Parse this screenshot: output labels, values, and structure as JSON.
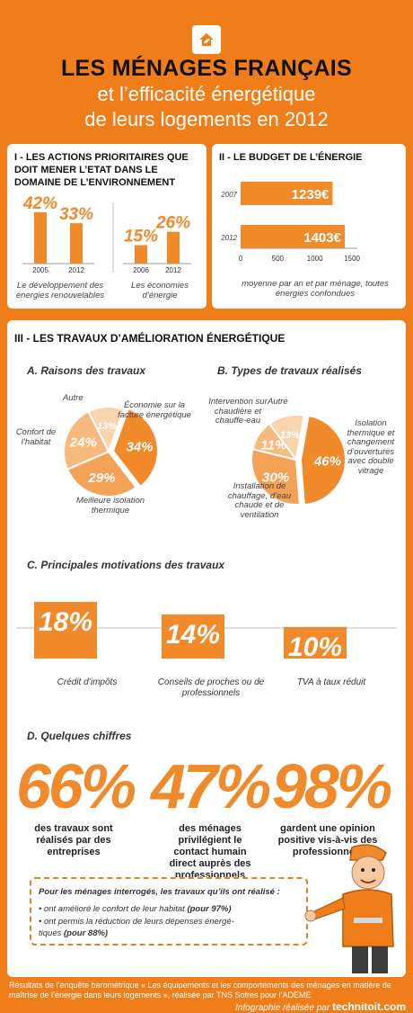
{
  "header": {
    "title_line1": "LES MÉNAGES FRANÇAIS",
    "title_line2": "et l’efficacité énergétique",
    "title_line3": "de leurs logements en 2012",
    "logo_icon": "house-leaf-icon"
  },
  "section1": {
    "title": "I - LES ACTIONS PRIORITAIRES QUE DOIT MENER L’ETAT DANS LE DOMAINE DE L’ENVIRONNEMENT",
    "chart_a_caption": "Le développement des énergies renouvelables",
    "chart_b_caption": "Les économies d’énergie"
  },
  "section2": {
    "title": "II - LE BUDGET DE L’ÉNERGIE",
    "caption": "moyenne par an et par ménage, toutes énergies confondues"
  },
  "section3": {
    "title": "III - LES TRAVAUX D’AMÉLIORATION ÉNERGÉTIQUE",
    "a_title": "A. Raisons des travaux",
    "b_title": "B. Types de travaux réalisés",
    "c_title": "C. Principales motivations des travaux",
    "d_title": "D. Quelques chiffres"
  },
  "chart_data": [
    {
      "type": "bar",
      "categories": [
        "2005",
        "2012"
      ],
      "values": [
        42,
        33
      ],
      "value_labels": [
        "42%",
        "33%"
      ],
      "ylim": [
        0,
        50
      ]
    },
    {
      "type": "bar",
      "categories": [
        "2006",
        "2012"
      ],
      "values": [
        15,
        26
      ],
      "value_labels": [
        "15%",
        "26%"
      ],
      "ylim": [
        0,
        50
      ]
    },
    {
      "type": "bar",
      "orientation": "horizontal",
      "categories": [
        "2007",
        "2012"
      ],
      "values": [
        1239,
        1403
      ],
      "value_labels": [
        "1239€",
        "1403€"
      ],
      "x_ticks": [
        "0",
        "500",
        "1000",
        "1500"
      ],
      "xlim": [
        0,
        1500
      ]
    },
    {
      "type": "pie",
      "labels": [
        "Économie sur la facture énergétique",
        "Meilleure isolation thermique",
        "Confort de l’habitat",
        "Autre"
      ],
      "values": [
        34,
        29,
        24,
        13
      ],
      "value_labels": [
        "34%",
        "29%",
        "24%",
        "13%"
      ]
    },
    {
      "type": "pie",
      "labels": [
        "Isolation thermique et changement d’ouvertures avec double vitrage",
        "Installation de chauffage, d’eau chaude et de ventilation",
        "Intervention sur chaudière et chauffe-eau",
        "Autre"
      ],
      "values": [
        46,
        30,
        11,
        13
      ],
      "value_labels": [
        "46%",
        "30%",
        "11%",
        "13%"
      ]
    },
    {
      "type": "bar",
      "categories": [
        "Crédit d’impôts",
        "Conseils de proches ou de professionnels",
        "TVA à taux réduit"
      ],
      "values": [
        18,
        14,
        10
      ],
      "value_labels": [
        "18%",
        "14%",
        "10%"
      ],
      "ylim": [
        0,
        20
      ]
    }
  ],
  "figures": [
    {
      "value": "66%",
      "caption": "des travaux sont réalisés par des entreprises"
    },
    {
      "value": "47%",
      "caption": "des ménages privilégient le contact humain direct auprès des professionnels"
    },
    {
      "value": "98%",
      "caption": "gardent une opinion positive vis-à-vis des professionnels"
    }
  ],
  "note": {
    "intro": "Pour les ménages interrogés, les travaux qu’ils ont réalisé :",
    "bullet1": "• ont amélioré le confort de leur habitat",
    "bullet1_bold": "(pour 97%)",
    "bullet2": "• ont permis la réduction de leurs dépenses énergé-tiques",
    "bullet2_bold": "(pour 88%)"
  },
  "footer": {
    "source": "Résultats de l’enquête barométrique « Les équipements et les comportements des ménages en matière de maîtrise de l’énergie dans leurs logements », réalisée par TNS Sofres pour l’ADEME",
    "credit_prefix": "Infographie réalisée par",
    "credit_brand": "technitoit.com"
  },
  "colors": {
    "accent": "#ef7d1a",
    "bar": "#f08a2a",
    "panel": "#ffffff"
  }
}
